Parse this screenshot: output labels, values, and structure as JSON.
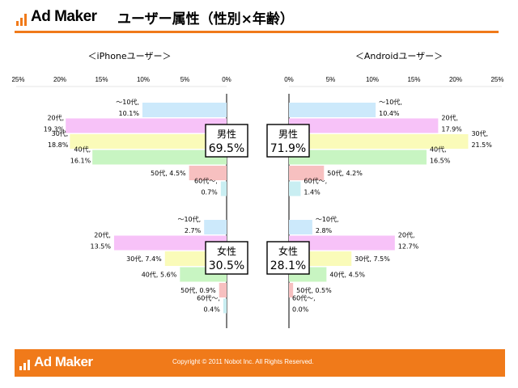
{
  "header": {
    "logo_text": "Ad Maker",
    "title": "ユーザー属性（性別×年齢）"
  },
  "footer": {
    "logo_text": "Ad Maker",
    "copyright": "Copyright © 2011 Nobot Inc. All Rights Reserved."
  },
  "colors": {
    "accent": "#f07a1a",
    "age_10s": "#cce9fb",
    "age_20s": "#f7c2f8",
    "age_30s": "#fafbb9",
    "age_40s": "#c8f5c2",
    "age_50s": "#f7c0c0",
    "age_60s": "#c9eef2"
  },
  "chart_data": [
    {
      "type": "bar",
      "orientation": "horizontal-left",
      "title": "＜iPhoneユーザー＞",
      "xlim": [
        0,
        25
      ],
      "ticks": [
        "25%",
        "20%",
        "15%",
        "10%",
        "5%",
        "0%"
      ],
      "groups": [
        {
          "label": "男性",
          "value_label": "69.5%",
          "bars": [
            {
              "age": "～10代",
              "value": 10.1,
              "label_line1": "～10代,",
              "label_line2": "10.1%"
            },
            {
              "age": "20代",
              "value": 19.3,
              "label_line1": "20代,",
              "label_line2": "19.3%"
            },
            {
              "age": "30代",
              "value": 18.8,
              "label_line1": "30代,",
              "label_line2": "18.8%"
            },
            {
              "age": "40代",
              "value": 16.1,
              "label_line1": "40代,",
              "label_line2": "16.1%"
            },
            {
              "age": "50代",
              "value": 4.5,
              "label_line1": "50代, 4.5%",
              "label_line2": ""
            },
            {
              "age": "60代～",
              "value": 0.7,
              "label_line1": "60代～,",
              "label_line2": "0.7%"
            }
          ]
        },
        {
          "label": "女性",
          "value_label": "30.5%",
          "bars": [
            {
              "age": "～10代",
              "value": 2.7,
              "label_line1": "～10代,",
              "label_line2": "2.7%"
            },
            {
              "age": "20代",
              "value": 13.5,
              "label_line1": "20代,",
              "label_line2": "13.5%"
            },
            {
              "age": "30代",
              "value": 7.4,
              "label_line1": "30代, 7.4%",
              "label_line2": ""
            },
            {
              "age": "40代",
              "value": 5.6,
              "label_line1": "40代, 5.6%",
              "label_line2": ""
            },
            {
              "age": "50代",
              "value": 0.9,
              "label_line1": "50代, 0.9%",
              "label_line2": ""
            },
            {
              "age": "60代～",
              "value": 0.4,
              "label_line1": "60代～,",
              "label_line2": "0.4%"
            }
          ]
        }
      ]
    },
    {
      "type": "bar",
      "orientation": "horizontal-right",
      "title": "＜Androidユーザー＞",
      "xlim": [
        0,
        25
      ],
      "ticks": [
        "0%",
        "5%",
        "10%",
        "15%",
        "20%",
        "25%"
      ],
      "groups": [
        {
          "label": "男性",
          "value_label": "71.9%",
          "bars": [
            {
              "age": "～10代",
              "value": 10.4,
              "label_line1": "～10代,",
              "label_line2": "10.4%"
            },
            {
              "age": "20代",
              "value": 17.9,
              "label_line1": "20代,",
              "label_line2": "17.9%"
            },
            {
              "age": "30代",
              "value": 21.5,
              "label_line1": "30代,",
              "label_line2": "21.5%"
            },
            {
              "age": "40代",
              "value": 16.5,
              "label_line1": "40代,",
              "label_line2": "16.5%"
            },
            {
              "age": "50代",
              "value": 4.2,
              "label_line1": "50代, 4.2%",
              "label_line2": ""
            },
            {
              "age": "60代～",
              "value": 1.4,
              "label_line1": "60代～,",
              "label_line2": "1.4%"
            }
          ]
        },
        {
          "label": "女性",
          "value_label": "28.1%",
          "bars": [
            {
              "age": "～10代",
              "value": 2.8,
              "label_line1": "～10代,",
              "label_line2": "2.8%"
            },
            {
              "age": "20代",
              "value": 12.7,
              "label_line1": "20代,",
              "label_line2": "12.7%"
            },
            {
              "age": "30代",
              "value": 7.5,
              "label_line1": "30代, 7.5%",
              "label_line2": ""
            },
            {
              "age": "40代",
              "value": 4.5,
              "label_line1": "40代, 4.5%",
              "label_line2": ""
            },
            {
              "age": "50代",
              "value": 0.5,
              "label_line1": "50代, 0.5%",
              "label_line2": ""
            },
            {
              "age": "60代～",
              "value": 0.0,
              "label_line1": "60代～,",
              "label_line2": "0.0%"
            }
          ]
        }
      ]
    }
  ]
}
